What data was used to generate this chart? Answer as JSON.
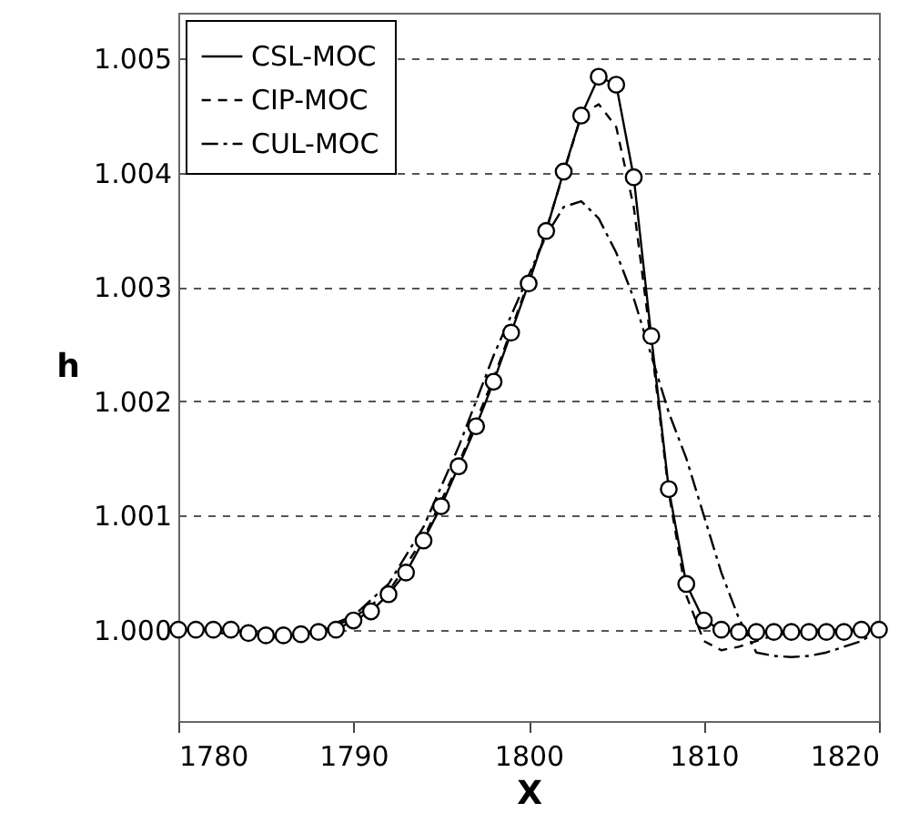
{
  "chart_data": {
    "type": "line",
    "xlabel": "X",
    "ylabel": "h",
    "xlim": [
      1780,
      1820
    ],
    "xticks": [
      1780,
      1790,
      1800,
      1810,
      1820
    ],
    "ylim": [
      0.9992,
      1.0054
    ],
    "yticks": [
      {
        "value": 1.0,
        "label": "1.000"
      },
      1.001,
      1.002,
      1.003,
      1.004,
      1.005
    ],
    "grid": "y",
    "legend": "top left",
    "series": [
      {
        "name": "CSL-MOC",
        "color": "#000000",
        "line_style": "solid",
        "marker": "circle",
        "x": [
          1780,
          1781,
          1782,
          1783,
          1784,
          1785,
          1786,
          1787,
          1788,
          1789,
          1790,
          1791,
          1792,
          1793,
          1794,
          1795,
          1796,
          1797,
          1798,
          1799,
          1800,
          1801,
          1802,
          1803,
          1804,
          1805,
          1806,
          1807,
          1808,
          1809,
          1810,
          1811,
          1812,
          1813,
          1814,
          1815,
          1816,
          1817,
          1818,
          1819,
          1820
        ],
        "values": [
          1.0,
          1.0,
          1.0,
          1.0,
          0.99997,
          0.99995,
          0.99995,
          0.99996,
          0.99998,
          1.0,
          1.00008,
          1.00016,
          1.00031,
          1.0005,
          1.00078,
          1.00108,
          1.00143,
          1.00178,
          1.00217,
          1.0026,
          1.00303,
          1.00349,
          1.00401,
          1.0045,
          1.00484,
          1.00477,
          1.00396,
          1.00257,
          1.00123,
          1.0004,
          1.00008,
          1.0,
          0.99998,
          0.99998,
          0.99998,
          0.99998,
          0.99998,
          0.99998,
          0.99998,
          1.0,
          1.0
        ]
      },
      {
        "name": "CIP-MOC",
        "color": "#000000",
        "line_style": "dashed",
        "marker": "none",
        "x": [
          1780,
          1782,
          1784,
          1786,
          1788,
          1790,
          1792,
          1794,
          1796,
          1798,
          1800,
          1801,
          1802,
          1803,
          1804,
          1805,
          1806,
          1807,
          1808,
          1809,
          1810,
          1811,
          1812,
          1814,
          1816,
          1820
        ],
        "values": [
          1.0,
          1.0,
          0.99996,
          0.99994,
          0.99998,
          1.0001,
          1.00033,
          1.0008,
          1.00145,
          1.0022,
          1.00305,
          1.0035,
          1.004,
          1.0045,
          1.0046,
          1.0044,
          1.0037,
          1.0025,
          1.0012,
          1.0003,
          0.9999,
          0.99982,
          0.99985,
          0.99995,
          1.0,
          1.0
        ]
      },
      {
        "name": "CUL-MOC",
        "color": "#000000",
        "line_style": "dashdot",
        "marker": "none",
        "x": [
          1780,
          1784,
          1786,
          1788,
          1790,
          1792,
          1794,
          1796,
          1798,
          1800,
          1801,
          1802,
          1803,
          1804,
          1805,
          1806,
          1807,
          1808,
          1809,
          1810,
          1811,
          1812,
          1813,
          1814,
          1815,
          1816,
          1817,
          1818,
          1819,
          1820
        ],
        "values": [
          1.0,
          0.99995,
          0.99993,
          1.0,
          1.00012,
          1.0004,
          1.0009,
          1.0016,
          1.0024,
          1.0031,
          1.00345,
          1.0037,
          1.00375,
          1.0036,
          1.0033,
          1.0029,
          1.0024,
          1.0019,
          1.0015,
          1.001,
          1.0005,
          1.0001,
          0.9998,
          0.99977,
          0.99976,
          0.99977,
          0.9998,
          0.99985,
          0.9999,
          1.0
        ]
      }
    ]
  }
}
